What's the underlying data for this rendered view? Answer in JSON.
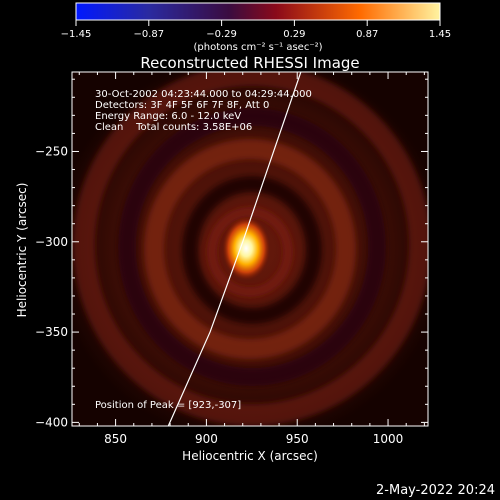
{
  "colorbar": {
    "ticks": [
      "-1.45",
      "-0.87",
      "-0.29",
      "0.29",
      "0.87",
      "1.45"
    ],
    "tick_values": [
      -1.45,
      -0.87,
      -0.29,
      0.29,
      0.87,
      1.45
    ],
    "range": [
      -1.45,
      1.45
    ],
    "unit_label": "(photons cm⁻² s⁻¹ asec⁻²)"
  },
  "image": {
    "title": "Reconstructed RHESSI Image",
    "info_lines": [
      "30-Oct-2002 04:23:44.000 to 04:29:44.000",
      "Detectors: 3F 4F 5F 6F 7F 8F, Att 0",
      "Energy Range: 6.0 - 12.0 keV",
      "Clean    Total counts: 3.58E+06"
    ],
    "peak_text": "Position of Peak = [923,-307]",
    "footer": "2-May-2022 20:24"
  },
  "chart_data": {
    "type": "heatmap",
    "title": "Reconstructed RHESSI Image",
    "xlabel": "Heliocentric X (arcsec)",
    "ylabel": "Heliocentric Y (arcsec)",
    "xlim": [
      826,
      1022
    ],
    "ylim": [
      -402,
      -206
    ],
    "x_ticks": [
      850,
      900,
      950,
      1000
    ],
    "y_ticks": [
      -250,
      -300,
      -350,
      -400
    ],
    "x_tick_labels": [
      "850",
      "900",
      "950",
      "1000"
    ],
    "y_tick_labels": [
      "−250",
      "−300",
      "−350",
      "−400"
    ],
    "peak": [
      923,
      -307
    ],
    "limb_points": [
      [
        879,
        -402
      ],
      [
        902,
        -350
      ],
      [
        920,
        -300
      ],
      [
        937,
        -250
      ],
      [
        952,
        -206
      ]
    ],
    "colormap": [
      "#000000",
      "#3b0000",
      "#8f1a00",
      "#d9480a",
      "#ffb000",
      "#fff8b0",
      "#ffffff"
    ],
    "colorbar_colors": [
      "#0018ff",
      "#2a2aa0",
      "#2a1040",
      "#8a0a1a",
      "#ff6a00",
      "#fff3a0"
    ]
  }
}
